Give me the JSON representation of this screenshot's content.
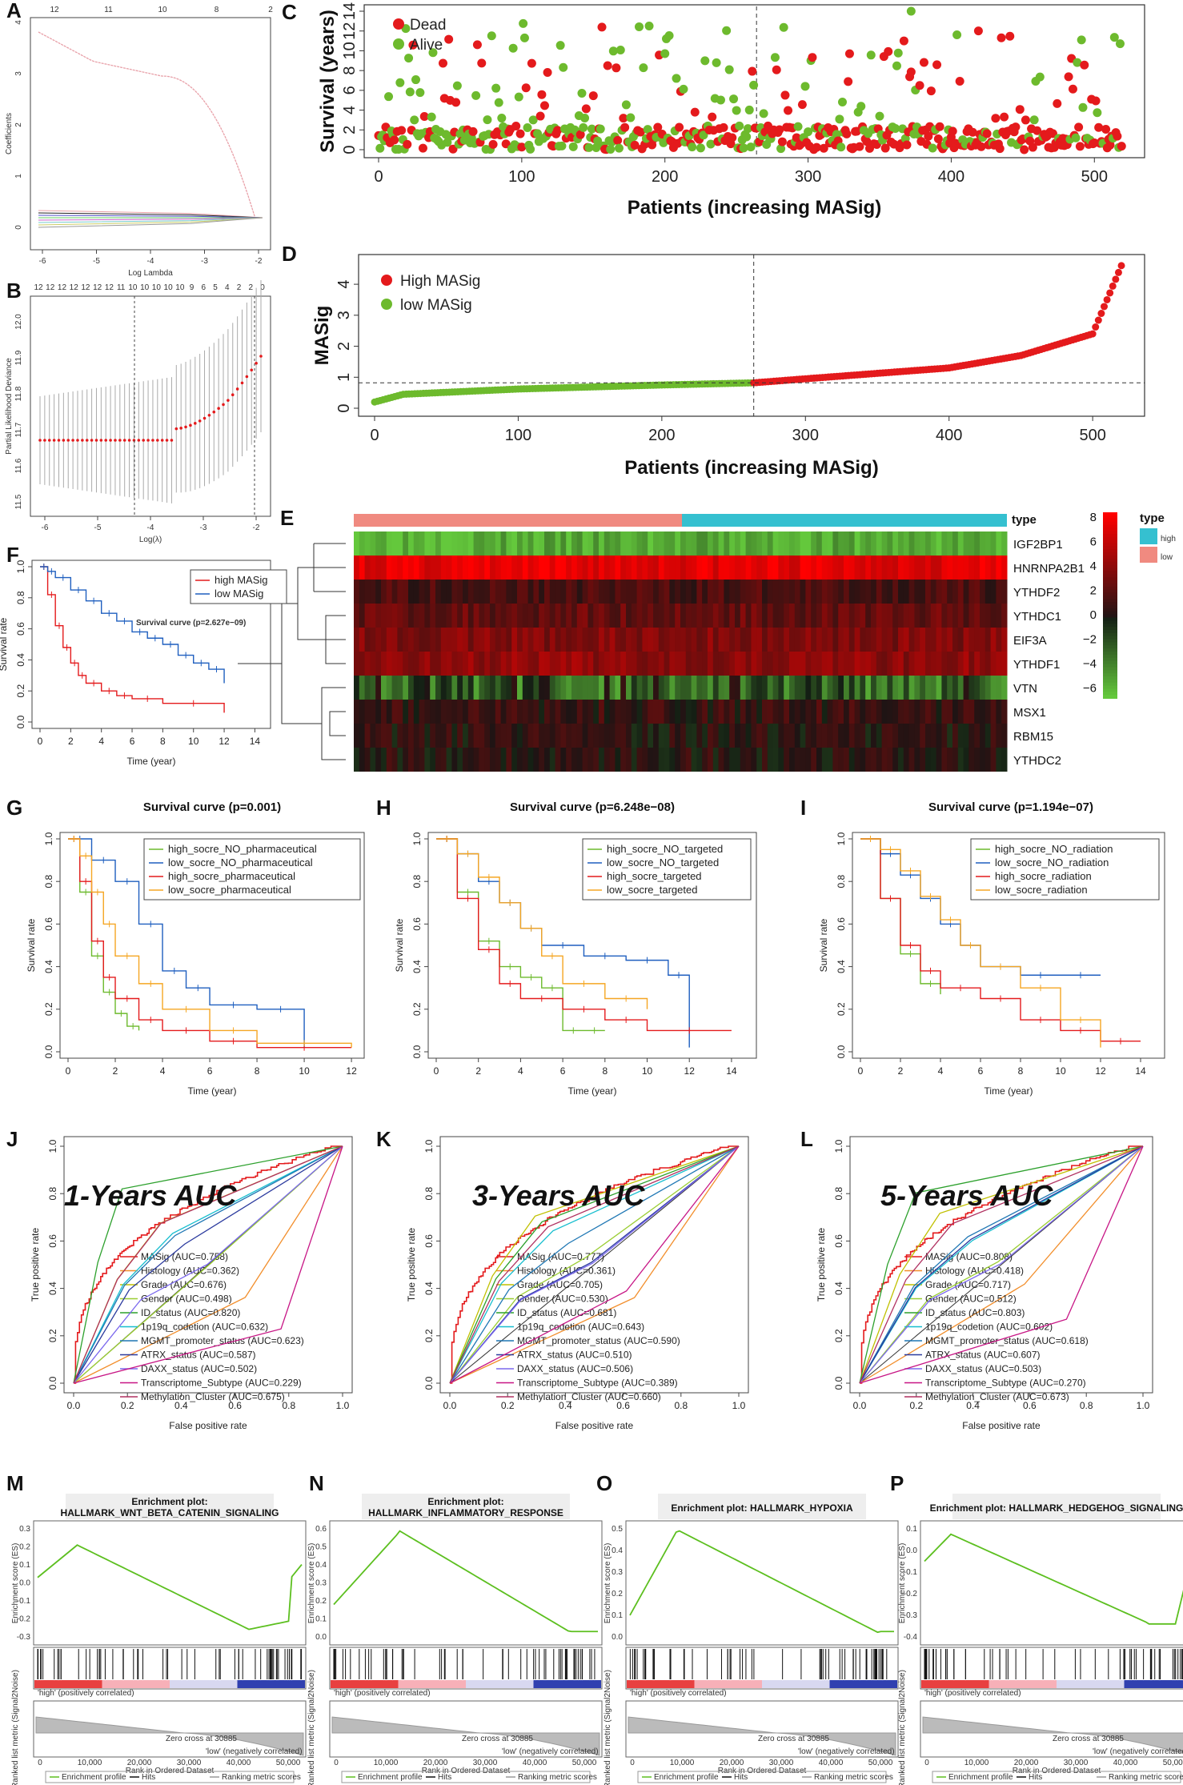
{
  "panels": {
    "A": {
      "label": "A",
      "xlabel": "Log Lambda",
      "ylabel": "Coefficients",
      "top_ticks": [
        "12",
        "11",
        "10",
        "8",
        "2"
      ],
      "x_ticks": [
        "-6",
        "-5",
        "-4",
        "-3",
        "-2"
      ],
      "y_ticks": [
        "0",
        "1",
        "2",
        "3",
        "4"
      ]
    },
    "B": {
      "label": "B",
      "xlabel": "Log(λ)",
      "ylabel": "Partial Likelihood Deviance",
      "top_ticks": [
        "12",
        "12",
        "12",
        "12",
        "12",
        "12",
        "12",
        "11",
        "10",
        "10",
        "10",
        "10",
        "10",
        "9",
        "6",
        "5",
        "4",
        "2",
        "2",
        "0"
      ],
      "x_ticks": [
        "-6",
        "-5",
        "-4",
        "-3",
        "-2"
      ],
      "y_ticks": [
        "11.5",
        "11.6",
        "11.7",
        "11.8",
        "11.9",
        "12.0"
      ]
    },
    "C": {
      "label": "C",
      "xlabel": "Patients (increasing MASig)",
      "ylabel": "Survival  (years)",
      "legend": [
        "Dead",
        "Alive"
      ],
      "x_ticks": [
        "0",
        "100",
        "200",
        "300",
        "400",
        "500"
      ],
      "y_ticks": [
        "0",
        "2",
        "4",
        "6",
        "8",
        "10",
        "12",
        "14"
      ]
    },
    "D": {
      "label": "D",
      "xlabel": "Patients (increasing MASig)",
      "ylabel": "MASig",
      "legend": [
        "High MASig",
        "low MASig"
      ],
      "x_ticks": [
        "0",
        "100",
        "200",
        "300",
        "400",
        "500"
      ],
      "y_ticks": [
        "0",
        "1",
        "2",
        "3",
        "4"
      ]
    },
    "E": {
      "label": "E",
      "genes": [
        "IGF2BP1",
        "HNRNPA2B1",
        "YTHDF2",
        "YTHDC1",
        "EIF3A",
        "YTHDF1",
        "VTN",
        "MSX1",
        "RBM15",
        "YTHDC2"
      ],
      "scale_ticks": [
        "8",
        "6",
        "4",
        "2",
        "0",
        "−2",
        "−4",
        "−6"
      ],
      "type_title": "type",
      "type_legend": [
        "high",
        "low"
      ],
      "bar_label": "type"
    },
    "F": {
      "label": "F",
      "title": "Survival curve (p=2.627e−09)",
      "xlabel": "Time (year)",
      "ylabel": "Survival rate",
      "legend": [
        "high MASig",
        "low MASig"
      ],
      "x_ticks": [
        "0",
        "2",
        "4",
        "6",
        "8",
        "10",
        "12",
        "14"
      ],
      "y_ticks": [
        "0.0",
        "0.2",
        "0.4",
        "0.6",
        "0.8",
        "1.0"
      ]
    },
    "G": {
      "label": "G",
      "title": "Survival curve (p=0.001)",
      "xlabel": "Time (year)",
      "ylabel": "Survival rate",
      "legend": [
        "high_socre_NO_pharmaceutical",
        "low_socre_NO_pharmaceutical",
        "high_socre_pharmaceutical",
        "low_socre_pharmaceutical"
      ],
      "x_ticks": [
        "0",
        "2",
        "4",
        "6",
        "8",
        "10",
        "12"
      ],
      "y_ticks": [
        "0.0",
        "0.2",
        "0.4",
        "0.6",
        "0.8",
        "1.0"
      ]
    },
    "H": {
      "label": "H",
      "title": "Survival curve (p=6.248e−08)",
      "xlabel": "Time (year)",
      "ylabel": "Survival rate",
      "legend": [
        "high_socre_NO_targeted",
        "low_socre_NO_targeted",
        "high_socre_targeted",
        "low_socre_targeted"
      ],
      "x_ticks": [
        "0",
        "2",
        "4",
        "6",
        "8",
        "10",
        "12",
        "14"
      ],
      "y_ticks": [
        "0.0",
        "0.2",
        "0.4",
        "0.6",
        "0.8",
        "1.0"
      ]
    },
    "I": {
      "label": "I",
      "title": "Survival curve (p=1.194e−07)",
      "xlabel": "Time (year)",
      "ylabel": "Survival rate",
      "legend": [
        "high_socre_NO_radiation",
        "low_socre_NO_radiation",
        "high_socre_radiation",
        "low_socre_radiation"
      ],
      "x_ticks": [
        "0",
        "2",
        "4",
        "6",
        "8",
        "10",
        "12",
        "14"
      ],
      "y_ticks": [
        "0.0",
        "0.2",
        "0.4",
        "0.6",
        "0.8",
        "1.0"
      ]
    },
    "J": {
      "label": "J",
      "title": "1-Years AUC",
      "xlabel": "False positive rate",
      "ylabel": "True positive rate",
      "legend": [
        "MASig (AUC=0.758)",
        "Histology (AUC=0.362)",
        "Grade (AUC=0.676)",
        "Gender (AUC=0.498)",
        "ID_status (AUC=0.820)",
        "1p19q_codetion (AUC=0.632)",
        "MGMT_promoter_status (AUC=0.623)",
        "ATRX_status (AUC=0.587)",
        "DAXX_status (AUC=0.502)",
        "Transcriptome_Subtype (AUC=0.229)",
        "Methylation_Cluster (AUC=0.675)"
      ],
      "x_ticks": [
        "0.0",
        "0.2",
        "0.4",
        "0.6",
        "0.8",
        "1.0"
      ],
      "y_ticks": [
        "0.0",
        "0.2",
        "0.4",
        "0.6",
        "0.8",
        "1.0"
      ]
    },
    "K": {
      "label": "K",
      "title": "3-Years AUC",
      "xlabel": "False positive rate",
      "ylabel": "True positive rate",
      "legend": [
        "MASig (AUC=0.777)",
        "Histology (AUC=0.361)",
        "Grade (AUC=0.705)",
        "Gender (AUC=0.530)",
        "ID_status (AUC=0.681)",
        "1p19q_codetion (AUC=0.643)",
        "MGMT_promoter_status (AUC=0.590)",
        "ATRX_status (AUC=0.510)",
        "DAXX_status (AUC=0.506)",
        "Transcriptome_Subtype (AUC=0.389)",
        "Methylation_Cluster (AUC=0.660)"
      ],
      "x_ticks": [
        "0.0",
        "0.2",
        "0.4",
        "0.6",
        "0.8",
        "1.0"
      ],
      "y_ticks": [
        "0.0",
        "0.2",
        "0.4",
        "0.6",
        "0.8",
        "1.0"
      ]
    },
    "L": {
      "label": "L",
      "title": "5-Years AUC",
      "xlabel": "False positive rate",
      "ylabel": "True positive rate",
      "legend": [
        "MASig (AUC=0.808)",
        "Histology (AUC=0.418)",
        "Grade (AUC=0.717)",
        "Gender (AUC=0.512)",
        "ID_status (AUC=0.803)",
        "1p19q_codetion (AUC=0.602)",
        "MGMT_promoter_status (AUC=0.618)",
        "ATRX_status (AUC=0.607)",
        "DAXX_status (AUC=0.503)",
        "Transcriptome_Subtype (AUC=0.270)",
        "Methylation_Cluster (AUC=0.673)"
      ],
      "x_ticks": [
        "0.0",
        "0.2",
        "0.4",
        "0.6",
        "0.8",
        "1.0"
      ],
      "y_ticks": [
        "0.0",
        "0.2",
        "0.4",
        "0.6",
        "0.8",
        "1.0"
      ]
    },
    "M": {
      "label": "M",
      "title1": "Enrichment plot:",
      "title2": "HALLMARK_WNT_BETA_CATENIN_SIGNALING",
      "ylabel": "Enrichment score (ES)",
      "ylabel2": "Ranked list metric (Signal2Noise)",
      "xlabel": "Rank in Ordered Dataset",
      "pos_label": "'high' (positively correlated)",
      "neg_label": "'low' (negatively correlated)",
      "zero_cross": "Zero cross at 30885",
      "legend": [
        "Enrichment profile",
        "Hits",
        "Ranking metric scores"
      ],
      "x_ticks": [
        "0",
        "10,000",
        "20,000",
        "30,000",
        "40,000",
        "50,000"
      ],
      "y_ticks": [
        "0.3",
        "0.2",
        "0.1",
        "0.0",
        "-0.1",
        "-0.2",
        "-0.3"
      ]
    },
    "N": {
      "label": "N",
      "title1": "Enrichment plot:",
      "title2": "HALLMARK_INFLAMMATORY_RESPONSE",
      "ylabel": "Enrichment score (ES)",
      "ylabel2": "Ranked list metric (Signal2Noise)",
      "xlabel": "Rank in Ordered Dataset",
      "pos_label": "'high' (positively correlated)",
      "neg_label": "'low' (negatively correlated)",
      "zero_cross": "Zero cross at 30885",
      "legend": [
        "Enrichment profile",
        "Hits",
        "Ranking metric scores"
      ],
      "x_ticks": [
        "0",
        "10,000",
        "20,000",
        "30,000",
        "40,000",
        "50,000"
      ],
      "y_ticks": [
        "0.6",
        "0.5",
        "0.4",
        "0.3",
        "0.2",
        "0.1",
        "0.0"
      ]
    },
    "O": {
      "label": "O",
      "title1": "Enrichment plot: HALLMARK_HYPOXIA",
      "title2": "",
      "ylabel": "Enrichment score (ES)",
      "ylabel2": "Ranked list metric (Signal2Noise)",
      "xlabel": "Rank in Ordered Dataset",
      "pos_label": "'high' (positively correlated)",
      "neg_label": "'low' (negatively correlated)",
      "zero_cross": "Zero cross at 30885",
      "legend": [
        "Enrichment profile",
        "Hits",
        "Ranking metric scores"
      ],
      "x_ticks": [
        "0",
        "10,000",
        "20,000",
        "30,000",
        "40,000",
        "50,000"
      ],
      "y_ticks": [
        "0.5",
        "0.4",
        "0.3",
        "0.2",
        "0.1",
        "0.0"
      ]
    },
    "P": {
      "label": "P",
      "title1": "Enrichment plot: HALLMARK_HEDGEHOG_SIGNALING",
      "title2": "",
      "ylabel": "Enrichment score (ES)",
      "ylabel2": "Ranked list metric (Signal2Noise)",
      "xlabel": "Rank in Ordered Dataset",
      "pos_label": "'high' (positively correlated)",
      "neg_label": "'low' (negatively correlated)",
      "zero_cross": "Zero cross at 30885",
      "legend": [
        "Enrichment profile",
        "Hits",
        "Ranking metric scores"
      ],
      "x_ticks": [
        "0",
        "10,000",
        "20,000",
        "30,000",
        "40,000",
        "50,000"
      ],
      "y_ticks": [
        "0.1",
        "0.0",
        "-0.1",
        "-0.2",
        "-0.3",
        "-0.4"
      ]
    }
  },
  "colors": {
    "red": "#e41a1c",
    "green": "#6dba2d",
    "blue": "#1f5fbf",
    "orange": "#f5a623",
    "es_green": "#5cbf1f",
    "lasso_red": "#e8a0a8"
  },
  "chart_data": [
    {
      "type": "line",
      "panel": "F",
      "title": "Survival curve (p=2.627e−09)",
      "series": [
        {
          "name": "high MASig",
          "x": [
            0,
            0.5,
            1,
            1.5,
            2,
            2.5,
            3,
            4,
            5,
            6,
            8,
            12
          ],
          "y": [
            1,
            0.82,
            0.62,
            0.48,
            0.38,
            0.3,
            0.25,
            0.2,
            0.17,
            0.15,
            0.12,
            0.06
          ]
        },
        {
          "name": "low MASig",
          "x": [
            0,
            0.5,
            1,
            2,
            3,
            4,
            5,
            6,
            7,
            8,
            9,
            10,
            11,
            12
          ],
          "y": [
            1,
            0.97,
            0.93,
            0.85,
            0.78,
            0.7,
            0.65,
            0.58,
            0.54,
            0.5,
            0.43,
            0.38,
            0.34,
            0.25
          ]
        }
      ]
    },
    {
      "type": "line",
      "panel": "G",
      "title": "Survival curve (p=0.001)",
      "series": [
        {
          "name": "high_socre_NO_pharmaceutical",
          "x": [
            0,
            0.5,
            1,
            1.5,
            2,
            2.5,
            3
          ],
          "y": [
            1,
            0.75,
            0.45,
            0.28,
            0.18,
            0.12,
            0.1
          ]
        },
        {
          "name": "low_socre_NO_pharmaceutical",
          "x": [
            0,
            1,
            2,
            3,
            4,
            5,
            6,
            8,
            10
          ],
          "y": [
            1,
            0.9,
            0.8,
            0.6,
            0.38,
            0.3,
            0.22,
            0.2,
            0.02
          ]
        },
        {
          "name": "high_socre_pharmaceutical",
          "x": [
            0,
            0.5,
            1,
            1.5,
            2,
            3,
            4,
            6,
            8,
            12
          ],
          "y": [
            1,
            0.8,
            0.52,
            0.35,
            0.25,
            0.15,
            0.1,
            0.05,
            0.02,
            0.02
          ]
        },
        {
          "name": "low_socre_pharmaceutical",
          "x": [
            0,
            0.5,
            1,
            1.5,
            2,
            3,
            4,
            6,
            8,
            12
          ],
          "y": [
            1,
            0.92,
            0.75,
            0.6,
            0.45,
            0.32,
            0.2,
            0.1,
            0.04,
            0.02
          ]
        }
      ]
    },
    {
      "type": "line",
      "panel": "H",
      "title": "Survival curve (p=6.248e−08)",
      "series": [
        {
          "name": "high_socre_NO_targeted",
          "x": [
            0,
            1,
            2,
            3,
            4,
            5,
            6,
            7,
            8
          ],
          "y": [
            1,
            0.75,
            0.52,
            0.4,
            0.35,
            0.3,
            0.1,
            0.1,
            0.1
          ]
        },
        {
          "name": "low_socre_NO_targeted",
          "x": [
            0,
            1,
            2,
            3,
            4,
            5,
            7,
            9,
            11,
            12
          ],
          "y": [
            1,
            0.93,
            0.8,
            0.7,
            0.58,
            0.5,
            0.45,
            0.43,
            0.36,
            0.02
          ]
        },
        {
          "name": "high_socre_targeted",
          "x": [
            0,
            1,
            2,
            3,
            4,
            6,
            8,
            10,
            14
          ],
          "y": [
            1,
            0.72,
            0.48,
            0.32,
            0.25,
            0.2,
            0.15,
            0.1,
            0.1
          ]
        },
        {
          "name": "low_socre_targeted",
          "x": [
            0,
            1,
            2,
            3,
            4,
            5,
            6,
            8,
            10
          ],
          "y": [
            1,
            0.93,
            0.82,
            0.7,
            0.58,
            0.45,
            0.32,
            0.25,
            0.2
          ]
        }
      ]
    },
    {
      "type": "line",
      "panel": "I",
      "title": "Survival curve (p=1.194e−07)",
      "series": [
        {
          "name": "high_socre_NO_radiation",
          "x": [
            0,
            1,
            2,
            3,
            4
          ],
          "y": [
            1,
            0.72,
            0.46,
            0.32,
            0.27
          ]
        },
        {
          "name": "low_socre_NO_radiation",
          "x": [
            0,
            1,
            2,
            3,
            4,
            5,
            6,
            8,
            10,
            12
          ],
          "y": [
            1,
            0.93,
            0.83,
            0.72,
            0.6,
            0.5,
            0.4,
            0.36,
            0.36,
            0.36
          ]
        },
        {
          "name": "high_socre_radiation",
          "x": [
            0,
            1,
            2,
            3,
            4,
            6,
            8,
            10,
            12,
            14
          ],
          "y": [
            1,
            0.72,
            0.5,
            0.38,
            0.3,
            0.25,
            0.15,
            0.1,
            0.05,
            0.05
          ]
        },
        {
          "name": "low_socre_radiation",
          "x": [
            0,
            1,
            2,
            3,
            4,
            5,
            6,
            8,
            10,
            12
          ],
          "y": [
            1,
            0.95,
            0.85,
            0.73,
            0.62,
            0.5,
            0.4,
            0.3,
            0.15,
            0.02
          ]
        }
      ]
    },
    {
      "type": "line",
      "panel": "J",
      "title": "1-Years AUC",
      "auc": [
        0.758,
        0.362,
        0.676,
        0.498,
        0.82,
        0.632,
        0.623,
        0.587,
        0.502,
        0.229,
        0.675
      ]
    },
    {
      "type": "line",
      "panel": "K",
      "title": "3-Years AUC",
      "auc": [
        0.777,
        0.361,
        0.705,
        0.53,
        0.681,
        0.643,
        0.59,
        0.51,
        0.506,
        0.389,
        0.66
      ]
    },
    {
      "type": "line",
      "panel": "L",
      "title": "5-Years AUC",
      "auc": [
        0.808,
        0.418,
        0.717,
        0.512,
        0.803,
        0.602,
        0.618,
        0.607,
        0.503,
        0.27,
        0.673
      ]
    },
    {
      "type": "scatter",
      "panel": "C",
      "xlabel": "Patients (increasing MASig)",
      "ylabel": "Survival  (years)",
      "xlim": [
        0,
        525
      ],
      "ylim": [
        0,
        14
      ],
      "cutoff_x": 264
    },
    {
      "type": "line",
      "panel": "D",
      "xlabel": "Patients (increasing MASig)",
      "ylabel": "MASig",
      "xlim": [
        0,
        525
      ],
      "ylim": [
        0,
        4.7
      ],
      "cutoff_x": 264,
      "cutoff_y": 0.82,
      "key_points": {
        "x": [
          0,
          20,
          100,
          200,
          264,
          300,
          400,
          450,
          500,
          520
        ],
        "y": [
          0.2,
          0.45,
          0.62,
          0.75,
          0.82,
          0.95,
          1.3,
          1.7,
          2.4,
          4.6
        ]
      }
    },
    {
      "type": "heatmap",
      "panel": "E",
      "rows": [
        "IGF2BP1",
        "HNRNPA2B1",
        "YTHDF2",
        "YTHDC1",
        "EIF3A",
        "YTHDF1",
        "VTN",
        "MSX1",
        "RBM15",
        "YTHDC2"
      ],
      "row_mean": [
        -5,
        7,
        1.5,
        2.5,
        3.5,
        4,
        -2,
        1,
        0.5,
        0.5
      ]
    }
  ]
}
